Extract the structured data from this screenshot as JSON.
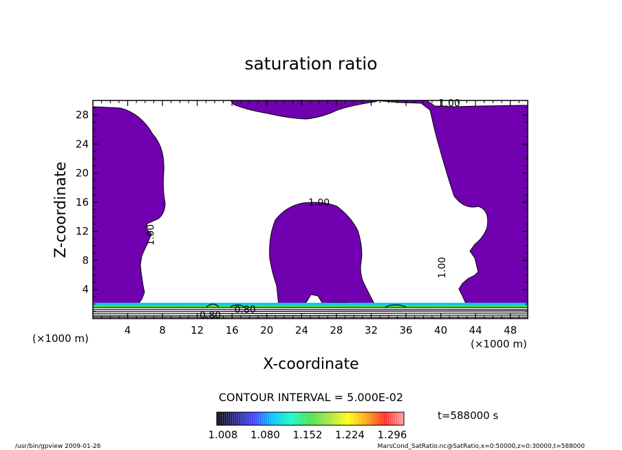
{
  "chart_data": {
    "type": "contour",
    "title": "saturation ratio",
    "xlabel": "X-coordinate",
    "ylabel": "Z-coordinate",
    "x_unit": "(×1000 m)",
    "x_unit_right": "(×1000 m)",
    "y_unit": "(×1000 m)",
    "xlim": [
      0,
      50
    ],
    "ylim": [
      0,
      30
    ],
    "x_ticks": [
      4,
      8,
      12,
      16,
      20,
      24,
      28,
      32,
      36,
      40,
      44,
      48
    ],
    "y_ticks": [
      4,
      8,
      12,
      16,
      20,
      24,
      28
    ],
    "contour_labels": [
      {
        "text": "1.00",
        "x": 7.0,
        "z": 11.5,
        "rot": -90
      },
      {
        "text": "1.00",
        "x": 26.0,
        "z": 15.5,
        "rot": 0
      },
      {
        "text": "1.00",
        "x": 40.5,
        "z": 7.0,
        "rot": -90
      },
      {
        "text": "1.00",
        "x": 41.0,
        "z": 29.2,
        "rot": 0
      },
      {
        "text": "0.80",
        "x": 13.5,
        "z": 0.0,
        "rot": 0
      },
      {
        "text": "0.80",
        "x": 17.5,
        "z": 0.8,
        "rot": 0
      }
    ],
    "contour_interval_text": "CONTOUR INTERVAL = 5.000E-02",
    "colorbar": {
      "labels": [
        "1.008",
        "1.080",
        "1.152",
        "1.224",
        "1.296"
      ],
      "colors": [
        "#000000",
        "#1b1b8a",
        "#3a3aff",
        "#00c0ff",
        "#00ffc0",
        "#40e040",
        "#a0e040",
        "#ffff00",
        "#ffa000",
        "#ff2020",
        "#ffa0a0"
      ]
    },
    "fill_color": "#7000b0",
    "time_label": "t=588000 s"
  },
  "footer": {
    "left": "/usr/bin/gpview  2009-01-26",
    "right": "MarsCond_SatRatio.nc@SatRatio,x=0:50000,z=0:30000,t=588000"
  }
}
